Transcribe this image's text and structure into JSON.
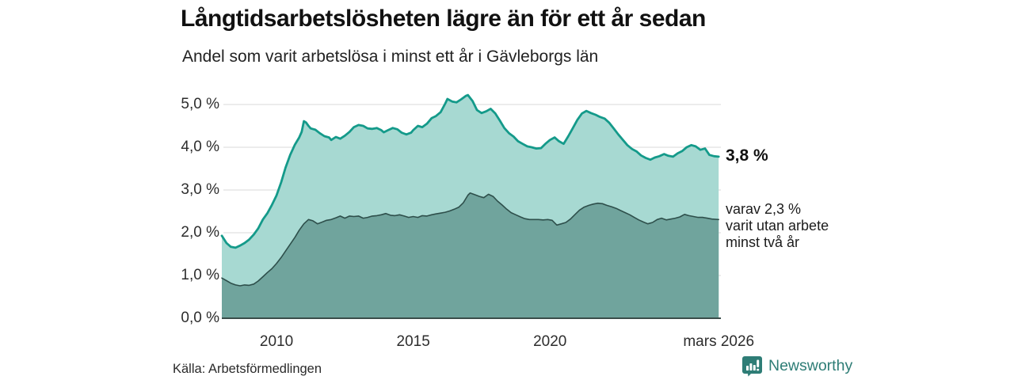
{
  "header": {
    "title": "Långtidsarbetslösheten lägre än för ett år sedan",
    "subtitle": "Andel som varit arbetslösa i minst ett år i Gävleborgs län"
  },
  "annotations": {
    "end_value": "3,8 %",
    "sub_line1": "varav 2,3 %",
    "sub_line2": "varit utan arbete",
    "sub_line3": "minst två år"
  },
  "footer": {
    "source": "Källa: Arbetsförmedlingen",
    "brand": "Newsworthy"
  },
  "colors": {
    "line_primary": "#149a8a",
    "fill_primary": "#a7d9d2",
    "line_secondary": "#2e4f4b",
    "fill_secondary": "#70a49d",
    "gridline": "#dadada",
    "axis_line": "#3a4d4a",
    "brand_teal": "#2e7d76"
  },
  "chart_data": {
    "type": "area",
    "title": "Långtidsarbetslösheten lägre än för ett år sedan",
    "subtitle": "Andel som varit arbetslösa i minst ett år i Gävleborgs län",
    "xlim": [
      2008.0,
      2026.25
    ],
    "ylim": [
      0,
      5
    ],
    "grid": true,
    "y_ticks": [
      {
        "value": 0,
        "label": "0,0 %"
      },
      {
        "value": 1,
        "label": "1,0 %"
      },
      {
        "value": 2,
        "label": "2,0 %"
      },
      {
        "value": 3,
        "label": "3,0 %"
      },
      {
        "value": 4,
        "label": "4,0 %"
      },
      {
        "value": 5,
        "label": "5,0 %"
      }
    ],
    "x_ticks": [
      {
        "year": 2010,
        "label": "2010"
      },
      {
        "year": 2015,
        "label": "2015"
      },
      {
        "year": 2020,
        "label": "2020"
      },
      {
        "year": 2026.17,
        "label": "mars 2026"
      }
    ],
    "series": [
      {
        "name": "Andel arbetslösa minst ett år",
        "end_label": "3,8 %",
        "line_color": "#149a8a",
        "fill_color": "#a7d9d2",
        "line_width": 2.8,
        "points": [
          [
            2008.0,
            1.93
          ],
          [
            2008.17,
            1.76
          ],
          [
            2008.33,
            1.67
          ],
          [
            2008.5,
            1.65
          ],
          [
            2008.67,
            1.7
          ],
          [
            2008.83,
            1.76
          ],
          [
            2009.0,
            1.84
          ],
          [
            2009.17,
            1.96
          ],
          [
            2009.33,
            2.1
          ],
          [
            2009.5,
            2.31
          ],
          [
            2009.67,
            2.46
          ],
          [
            2009.83,
            2.65
          ],
          [
            2010.0,
            2.87
          ],
          [
            2010.17,
            3.18
          ],
          [
            2010.33,
            3.52
          ],
          [
            2010.5,
            3.82
          ],
          [
            2010.67,
            4.06
          ],
          [
            2010.83,
            4.23
          ],
          [
            2010.92,
            4.36
          ],
          [
            2011.0,
            4.61
          ],
          [
            2011.08,
            4.58
          ],
          [
            2011.17,
            4.5
          ],
          [
            2011.25,
            4.44
          ],
          [
            2011.42,
            4.41
          ],
          [
            2011.58,
            4.33
          ],
          [
            2011.75,
            4.26
          ],
          [
            2011.92,
            4.23
          ],
          [
            2012.0,
            4.17
          ],
          [
            2012.17,
            4.24
          ],
          [
            2012.33,
            4.2
          ],
          [
            2012.5,
            4.27
          ],
          [
            2012.67,
            4.36
          ],
          [
            2012.83,
            4.47
          ],
          [
            2013.0,
            4.52
          ],
          [
            2013.17,
            4.5
          ],
          [
            2013.33,
            4.44
          ],
          [
            2013.5,
            4.43
          ],
          [
            2013.67,
            4.45
          ],
          [
            2013.83,
            4.4
          ],
          [
            2013.92,
            4.35
          ],
          [
            2014.08,
            4.4
          ],
          [
            2014.25,
            4.45
          ],
          [
            2014.42,
            4.42
          ],
          [
            2014.58,
            4.34
          ],
          [
            2014.75,
            4.3
          ],
          [
            2014.92,
            4.34
          ],
          [
            2015.0,
            4.4
          ],
          [
            2015.17,
            4.5
          ],
          [
            2015.33,
            4.47
          ],
          [
            2015.5,
            4.55
          ],
          [
            2015.67,
            4.68
          ],
          [
            2015.83,
            4.73
          ],
          [
            2016.0,
            4.82
          ],
          [
            2016.17,
            5.02
          ],
          [
            2016.25,
            5.13
          ],
          [
            2016.42,
            5.07
          ],
          [
            2016.58,
            5.05
          ],
          [
            2016.75,
            5.12
          ],
          [
            2016.92,
            5.2
          ],
          [
            2017.0,
            5.22
          ],
          [
            2017.17,
            5.08
          ],
          [
            2017.33,
            4.87
          ],
          [
            2017.5,
            4.8
          ],
          [
            2017.67,
            4.84
          ],
          [
            2017.83,
            4.9
          ],
          [
            2018.0,
            4.79
          ],
          [
            2018.17,
            4.62
          ],
          [
            2018.33,
            4.45
          ],
          [
            2018.5,
            4.33
          ],
          [
            2018.67,
            4.25
          ],
          [
            2018.83,
            4.14
          ],
          [
            2019.0,
            4.08
          ],
          [
            2019.17,
            4.02
          ],
          [
            2019.33,
            4.0
          ],
          [
            2019.5,
            3.97
          ],
          [
            2019.67,
            3.98
          ],
          [
            2019.83,
            4.08
          ],
          [
            2020.0,
            4.17
          ],
          [
            2020.17,
            4.23
          ],
          [
            2020.33,
            4.14
          ],
          [
            2020.5,
            4.08
          ],
          [
            2020.67,
            4.26
          ],
          [
            2020.83,
            4.44
          ],
          [
            2021.0,
            4.64
          ],
          [
            2021.17,
            4.79
          ],
          [
            2021.33,
            4.85
          ],
          [
            2021.5,
            4.8
          ],
          [
            2021.67,
            4.76
          ],
          [
            2021.83,
            4.71
          ],
          [
            2022.0,
            4.67
          ],
          [
            2022.17,
            4.57
          ],
          [
            2022.33,
            4.44
          ],
          [
            2022.5,
            4.3
          ],
          [
            2022.67,
            4.17
          ],
          [
            2022.83,
            4.05
          ],
          [
            2023.0,
            3.96
          ],
          [
            2023.17,
            3.9
          ],
          [
            2023.33,
            3.81
          ],
          [
            2023.5,
            3.75
          ],
          [
            2023.67,
            3.71
          ],
          [
            2023.83,
            3.76
          ],
          [
            2024.0,
            3.79
          ],
          [
            2024.17,
            3.84
          ],
          [
            2024.33,
            3.8
          ],
          [
            2024.5,
            3.78
          ],
          [
            2024.67,
            3.86
          ],
          [
            2024.83,
            3.91
          ],
          [
            2025.0,
            4.0
          ],
          [
            2025.17,
            4.05
          ],
          [
            2025.33,
            4.02
          ],
          [
            2025.5,
            3.94
          ],
          [
            2025.67,
            3.97
          ],
          [
            2025.83,
            3.82
          ],
          [
            2026.0,
            3.79
          ],
          [
            2026.17,
            3.78
          ]
        ]
      },
      {
        "name": "varav utan arbete minst två år",
        "end_label": "varav 2,3 % varit utan arbete minst två år",
        "line_color": "#2e4f4b",
        "fill_color": "#70a49d",
        "line_width": 1.6,
        "points": [
          [
            2008.0,
            0.94
          ],
          [
            2008.17,
            0.88
          ],
          [
            2008.33,
            0.82
          ],
          [
            2008.5,
            0.78
          ],
          [
            2008.67,
            0.76
          ],
          [
            2008.83,
            0.78
          ],
          [
            2009.0,
            0.77
          ],
          [
            2009.17,
            0.8
          ],
          [
            2009.33,
            0.87
          ],
          [
            2009.5,
            0.97
          ],
          [
            2009.67,
            1.07
          ],
          [
            2009.83,
            1.16
          ],
          [
            2010.0,
            1.28
          ],
          [
            2010.17,
            1.42
          ],
          [
            2010.33,
            1.57
          ],
          [
            2010.5,
            1.73
          ],
          [
            2010.67,
            1.89
          ],
          [
            2010.83,
            2.06
          ],
          [
            2011.0,
            2.21
          ],
          [
            2011.17,
            2.31
          ],
          [
            2011.33,
            2.28
          ],
          [
            2011.5,
            2.21
          ],
          [
            2011.67,
            2.25
          ],
          [
            2011.83,
            2.29
          ],
          [
            2012.0,
            2.31
          ],
          [
            2012.17,
            2.35
          ],
          [
            2012.33,
            2.39
          ],
          [
            2012.5,
            2.34
          ],
          [
            2012.67,
            2.39
          ],
          [
            2012.83,
            2.38
          ],
          [
            2013.0,
            2.39
          ],
          [
            2013.17,
            2.34
          ],
          [
            2013.33,
            2.36
          ],
          [
            2013.5,
            2.39
          ],
          [
            2013.67,
            2.4
          ],
          [
            2013.83,
            2.42
          ],
          [
            2014.0,
            2.45
          ],
          [
            2014.17,
            2.41
          ],
          [
            2014.33,
            2.4
          ],
          [
            2014.5,
            2.42
          ],
          [
            2014.67,
            2.39
          ],
          [
            2014.83,
            2.36
          ],
          [
            2015.0,
            2.38
          ],
          [
            2015.17,
            2.36
          ],
          [
            2015.33,
            2.4
          ],
          [
            2015.5,
            2.39
          ],
          [
            2015.67,
            2.42
          ],
          [
            2015.83,
            2.44
          ],
          [
            2016.0,
            2.46
          ],
          [
            2016.17,
            2.48
          ],
          [
            2016.33,
            2.51
          ],
          [
            2016.5,
            2.55
          ],
          [
            2016.67,
            2.6
          ],
          [
            2016.83,
            2.7
          ],
          [
            2017.0,
            2.88
          ],
          [
            2017.08,
            2.93
          ],
          [
            2017.25,
            2.89
          ],
          [
            2017.42,
            2.85
          ],
          [
            2017.58,
            2.82
          ],
          [
            2017.75,
            2.9
          ],
          [
            2017.92,
            2.85
          ],
          [
            2018.08,
            2.74
          ],
          [
            2018.25,
            2.65
          ],
          [
            2018.42,
            2.55
          ],
          [
            2018.58,
            2.47
          ],
          [
            2018.75,
            2.42
          ],
          [
            2018.92,
            2.37
          ],
          [
            2019.08,
            2.33
          ],
          [
            2019.25,
            2.31
          ],
          [
            2019.42,
            2.31
          ],
          [
            2019.58,
            2.31
          ],
          [
            2019.75,
            2.3
          ],
          [
            2019.92,
            2.31
          ],
          [
            2020.08,
            2.29
          ],
          [
            2020.25,
            2.18
          ],
          [
            2020.42,
            2.21
          ],
          [
            2020.58,
            2.24
          ],
          [
            2020.75,
            2.32
          ],
          [
            2020.92,
            2.43
          ],
          [
            2021.08,
            2.53
          ],
          [
            2021.25,
            2.6
          ],
          [
            2021.42,
            2.64
          ],
          [
            2021.58,
            2.67
          ],
          [
            2021.75,
            2.69
          ],
          [
            2021.92,
            2.68
          ],
          [
            2022.08,
            2.64
          ],
          [
            2022.25,
            2.61
          ],
          [
            2022.42,
            2.57
          ],
          [
            2022.58,
            2.52
          ],
          [
            2022.75,
            2.47
          ],
          [
            2022.92,
            2.42
          ],
          [
            2023.08,
            2.36
          ],
          [
            2023.25,
            2.3
          ],
          [
            2023.42,
            2.25
          ],
          [
            2023.58,
            2.21
          ],
          [
            2023.75,
            2.24
          ],
          [
            2023.92,
            2.31
          ],
          [
            2024.08,
            2.34
          ],
          [
            2024.25,
            2.3
          ],
          [
            2024.42,
            2.32
          ],
          [
            2024.58,
            2.34
          ],
          [
            2024.75,
            2.37
          ],
          [
            2024.92,
            2.43
          ],
          [
            2025.08,
            2.4
          ],
          [
            2025.25,
            2.38
          ],
          [
            2025.42,
            2.36
          ],
          [
            2025.58,
            2.36
          ],
          [
            2025.75,
            2.34
          ],
          [
            2025.92,
            2.32
          ],
          [
            2026.17,
            2.31
          ]
        ]
      }
    ],
    "legend_position": "none",
    "annotations": [
      "3,8 %",
      "varav 2,3 % varit utan arbete minst två år"
    ]
  }
}
